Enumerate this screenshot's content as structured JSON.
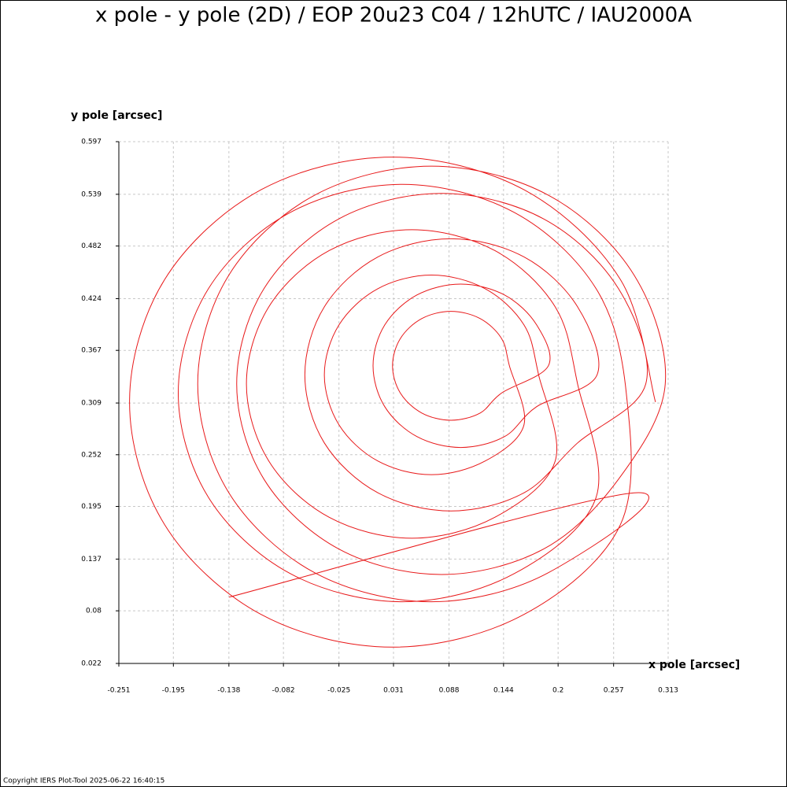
{
  "chart_data": {
    "type": "line",
    "title": "x pole - y pole (2D) / EOP 20u23 C04 / 12hUTC / IAU2000A",
    "x_label": "x pole [arcsec]",
    "y_label": "y pole [arcsec]",
    "footer": "Copyright IERS Plot-Tool 2025-06-22 16:40:15",
    "color": "#e8191a",
    "grid": true,
    "xlim": [
      -0.251,
      0.313
    ],
    "ylim": [
      0.022,
      0.597
    ],
    "xticks": [
      -0.251,
      -0.195,
      -0.138,
      -0.082,
      -0.025,
      0.031,
      0.088,
      0.144,
      0.2,
      0.257,
      0.313
    ],
    "yticks": [
      0.022,
      0.08,
      0.137,
      0.195,
      0.252,
      0.309,
      0.367,
      0.424,
      0.482,
      0.539,
      0.597
    ],
    "x": [
      0.3,
      0.264,
      0.165,
      0.03,
      -0.105,
      -0.204,
      -0.24,
      -0.204,
      -0.105,
      0.03,
      0.165,
      0.264,
      0.27,
      0.239,
      0.155,
      0.04,
      -0.075,
      -0.159,
      -0.19,
      -0.159,
      -0.075,
      0.04,
      0.155,
      0.239,
      0.22,
      0.197,
      0.135,
      0.05,
      -0.035,
      -0.097,
      -0.12,
      -0.097,
      -0.035,
      0.05,
      0.135,
      0.197,
      0.18,
      0.165,
      0.125,
      0.07,
      0.015,
      -0.025,
      -0.04,
      -0.025,
      0.015,
      0.07,
      0.125,
      0.165,
      0.15,
      0.142,
      0.12,
      0.09,
      0.06,
      0.038,
      0.03,
      0.038,
      0.06,
      0.09,
      0.12,
      0.142,
      0.19,
      0.178,
      0.145,
      0.1,
      0.055,
      0.022,
      0.01,
      0.022,
      0.055,
      0.1,
      0.145,
      0.178,
      0.24,
      0.22,
      0.165,
      0.09,
      0.015,
      -0.04,
      -0.06,
      -0.04,
      0.015,
      0.09,
      0.165,
      0.22,
      0.29,
      0.262,
      0.185,
      0.08,
      -0.025,
      -0.102,
      -0.13,
      -0.102,
      -0.025,
      0.08,
      0.185,
      0.262,
      0.31,
      0.278,
      0.19,
      0.07,
      -0.05,
      -0.138,
      -0.17,
      -0.138,
      -0.05,
      0.07,
      0.19,
      0.278,
      -0.138
    ],
    "values": [
      0.31,
      0.445,
      0.544,
      0.58,
      0.544,
      0.445,
      0.31,
      0.175,
      0.076,
      0.04,
      0.076,
      0.175,
      0.32,
      0.435,
      0.519,
      0.55,
      0.519,
      0.435,
      0.32,
      0.205,
      0.121,
      0.09,
      0.121,
      0.205,
      0.33,
      0.415,
      0.477,
      0.5,
      0.477,
      0.415,
      0.33,
      0.245,
      0.183,
      0.16,
      0.183,
      0.245,
      0.34,
      0.395,
      0.435,
      0.45,
      0.435,
      0.395,
      0.34,
      0.285,
      0.245,
      0.23,
      0.245,
      0.285,
      0.35,
      0.38,
      0.402,
      0.41,
      0.402,
      0.38,
      0.35,
      0.32,
      0.298,
      0.29,
      0.298,
      0.32,
      0.35,
      0.395,
      0.428,
      0.44,
      0.428,
      0.395,
      0.35,
      0.305,
      0.272,
      0.26,
      0.272,
      0.305,
      0.34,
      0.415,
      0.47,
      0.49,
      0.47,
      0.415,
      0.34,
      0.265,
      0.21,
      0.19,
      0.21,
      0.265,
      0.33,
      0.435,
      0.512,
      0.54,
      0.512,
      0.435,
      0.33,
      0.225,
      0.148,
      0.12,
      0.148,
      0.225,
      0.33,
      0.45,
      0.538,
      0.57,
      0.538,
      0.45,
      0.33,
      0.21,
      0.122,
      0.09,
      0.122,
      0.21,
      0.095
    ]
  }
}
